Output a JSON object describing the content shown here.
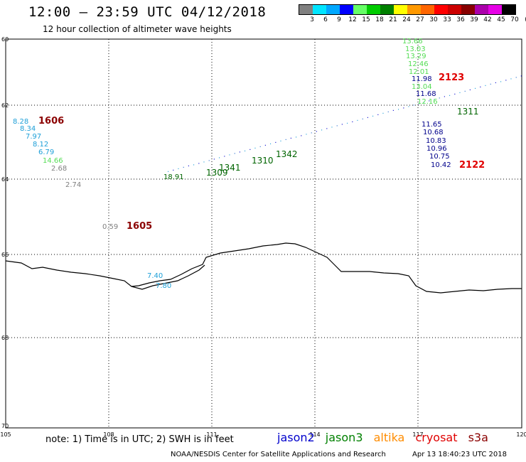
{
  "header": {
    "title": "12:00 – 23:59 UTC 04/12/2018",
    "subtitle": "12 hour collection of altimeter wave heights"
  },
  "scale": {
    "labels": [
      "3",
      "6",
      "9",
      "12",
      "15",
      "18",
      "21",
      "24",
      "27",
      "30",
      "33",
      "36",
      "39",
      "42",
      "45",
      "70"
    ],
    "unit": "(ft)",
    "colors": [
      "#808080",
      "#00e5ff",
      "#00a8ff",
      "#0000ff",
      "#66ff66",
      "#00cc00",
      "#008000",
      "#ffff00",
      "#ff9900",
      "#ff6600",
      "#ff0000",
      "#cc0000",
      "#880000",
      "#aa00aa",
      "#e600e6",
      "#000000"
    ]
  },
  "axes": {
    "lon_labels": [
      "105",
      "108",
      "111",
      "114",
      "117",
      "120"
    ],
    "lat_labels": [
      "60",
      "62",
      "64",
      "66",
      "68",
      "70"
    ]
  },
  "annotations": {
    "passes": [
      {
        "id": "1606",
        "color": "#8b0000"
      },
      {
        "id": "1605",
        "color": "#8b0000"
      },
      {
        "id": "2123",
        "color": "#e00000"
      },
      {
        "id": "2122",
        "color": "#e00000"
      }
    ],
    "wave_labels": [
      {
        "text": "8.28",
        "color": "#1fa0d8"
      },
      {
        "text": "8.34",
        "color": "#1fa0d8"
      },
      {
        "text": "7.97",
        "color": "#1fa0d8"
      },
      {
        "text": "8.12",
        "color": "#1fa0d8"
      },
      {
        "text": "6.79",
        "color": "#1fa0d8"
      },
      {
        "text": "14.66",
        "color": "#55dd55"
      },
      {
        "text": "2.68",
        "color": "#808080"
      },
      {
        "text": "2.74",
        "color": "#808080"
      },
      {
        "text": "0.59",
        "color": "#808080"
      },
      {
        "text": "7.40",
        "color": "#1fa0d8"
      },
      {
        "text": "7.80",
        "color": "#1fa0d8"
      },
      {
        "text": "13.66",
        "color": "#55dd55"
      },
      {
        "text": "13.03",
        "color": "#55dd55"
      },
      {
        "text": "13.29",
        "color": "#55dd55"
      },
      {
        "text": "12.46",
        "color": "#55dd55"
      },
      {
        "text": "12.01",
        "color": "#55dd55"
      },
      {
        "text": "11.98",
        "color": "#00008b"
      },
      {
        "text": "13.04",
        "color": "#55dd55"
      },
      {
        "text": "11.68",
        "color": "#00008b"
      },
      {
        "text": "12.16",
        "color": "#55dd55"
      },
      {
        "text": "11.65",
        "color": "#00008b"
      },
      {
        "text": "10.68",
        "color": "#00008b"
      },
      {
        "text": "10.83",
        "color": "#00008b"
      },
      {
        "text": "10.96",
        "color": "#00008b"
      },
      {
        "text": "10.75",
        "color": "#00008b"
      },
      {
        "text": "10.42",
        "color": "#00008b"
      },
      {
        "text": "18.91",
        "color": "#006400"
      },
      {
        "text": "1309",
        "color": "#006400"
      },
      {
        "text": "1341",
        "color": "#006400"
      },
      {
        "text": "1310",
        "color": "#006400"
      },
      {
        "text": "1342",
        "color": "#006400"
      },
      {
        "text": "1311",
        "color": "#006400"
      }
    ]
  },
  "footer": {
    "note": "note: 1) Time is in UTC; 2) SWH is in feet",
    "legend": [
      {
        "name": "jason2",
        "color": "#0000cc"
      },
      {
        "name": "jason3",
        "color": "#008000"
      },
      {
        "name": "altika",
        "color": "#ff8c00"
      },
      {
        "name": "cryosat",
        "color": "#e00000"
      },
      {
        "name": "s3a",
        "color": "#8b0000"
      }
    ],
    "credit": "NOAA/NESDIS Center for Satellite Applications and Research",
    "timestamp": "Apr 13 18:40:23 UTC 2018"
  }
}
